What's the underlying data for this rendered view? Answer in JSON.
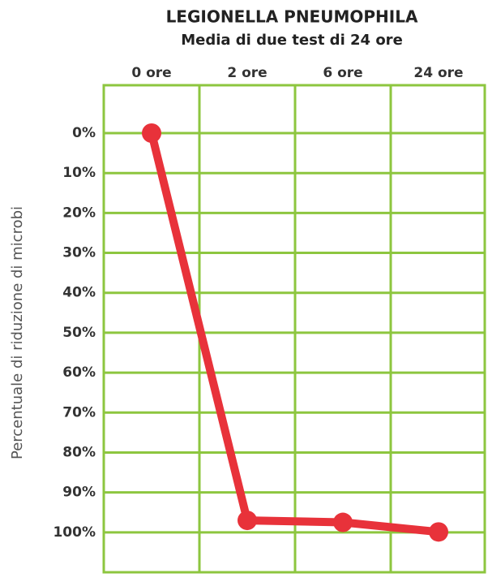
{
  "chart_data": {
    "type": "line",
    "title": "LEGIONELLA PNEUMOPHILA",
    "subtitle": "Media di due test di 24 ore",
    "y_label": "Percentuale di riduzione di microbi",
    "categories": [
      "0 ore",
      "2 ore",
      "6 ore",
      "24 ore"
    ],
    "series": [
      {
        "name": "Legionella pneumophila",
        "color": "#e8323a",
        "values": [
          0,
          97,
          97.5,
          99.9
        ]
      }
    ],
    "ylim": [
      110,
      -12
    ],
    "yticks": [
      {
        "value": 0,
        "label": "0%"
      },
      {
        "value": 10,
        "label": "10%"
      },
      {
        "value": 20,
        "label": "20%"
      },
      {
        "value": 30,
        "label": "30%"
      },
      {
        "value": 40,
        "label": "40%"
      },
      {
        "value": 50,
        "label": "50%"
      },
      {
        "value": 60,
        "label": "60%"
      },
      {
        "value": 70,
        "label": "70%"
      },
      {
        "value": 80,
        "label": "80%"
      },
      {
        "value": 90,
        "label": "90%"
      },
      {
        "value": 100,
        "label": "100%"
      }
    ],
    "grid": true,
    "grid_color": "#8dc63f"
  }
}
